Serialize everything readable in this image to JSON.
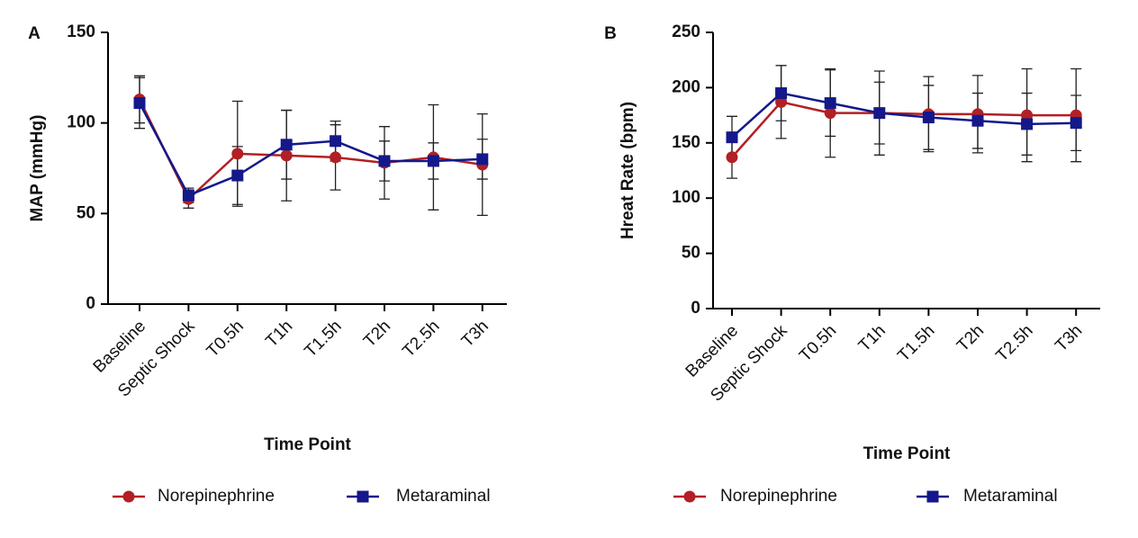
{
  "chart_data": [
    {
      "type": "line",
      "panel_label": "A",
      "y_label": "MAP (mmHg)",
      "x_label": "Time Point",
      "categories": [
        "Baseline",
        "Septic Shock",
        "T0.5h",
        "T1h",
        "T1.5h",
        "T2h",
        "T2.5h",
        "T3h"
      ],
      "ylim": [
        0,
        150
      ],
      "yticks": [
        0,
        50,
        100,
        150
      ],
      "series": [
        {
          "name": "Norepinephrine",
          "color": "#b21f24",
          "marker": "circle",
          "values": [
            113,
            58,
            83,
            82,
            81,
            78,
            81,
            77
          ],
          "errors": [
            13,
            5,
            29,
            25,
            18,
            20,
            29,
            28
          ]
        },
        {
          "name": "Metaraminal",
          "color": "#14188a",
          "marker": "square",
          "values": [
            111,
            60,
            71,
            88,
            90,
            79,
            79,
            80
          ],
          "errors": [
            14,
            4,
            16,
            19,
            11,
            11,
            10,
            11
          ]
        }
      ]
    },
    {
      "type": "line",
      "panel_label": "B",
      "y_label": "Hreat Rate (bpm)",
      "x_label": "Time Point",
      "categories": [
        "Baseline",
        "Septic Shock",
        "T0.5h",
        "T1h",
        "T1.5h",
        "T2h",
        "T2.5h",
        "T3h"
      ],
      "ylim": [
        0,
        250
      ],
      "yticks": [
        0,
        50,
        100,
        150,
        200,
        250
      ],
      "series": [
        {
          "name": "Norepinephrine",
          "color": "#b21f24",
          "marker": "circle",
          "values": [
            137,
            187,
            177,
            177,
            176,
            176,
            175,
            175
          ],
          "errors": [
            19,
            33,
            40,
            38,
            34,
            35,
            42,
            42
          ]
        },
        {
          "name": "Metaraminal",
          "color": "#14188a",
          "marker": "square",
          "values": [
            155,
            195,
            186,
            177,
            173,
            170,
            167,
            168
          ],
          "errors": [
            19,
            25,
            30,
            28,
            29,
            25,
            28,
            25
          ]
        }
      ]
    }
  ]
}
